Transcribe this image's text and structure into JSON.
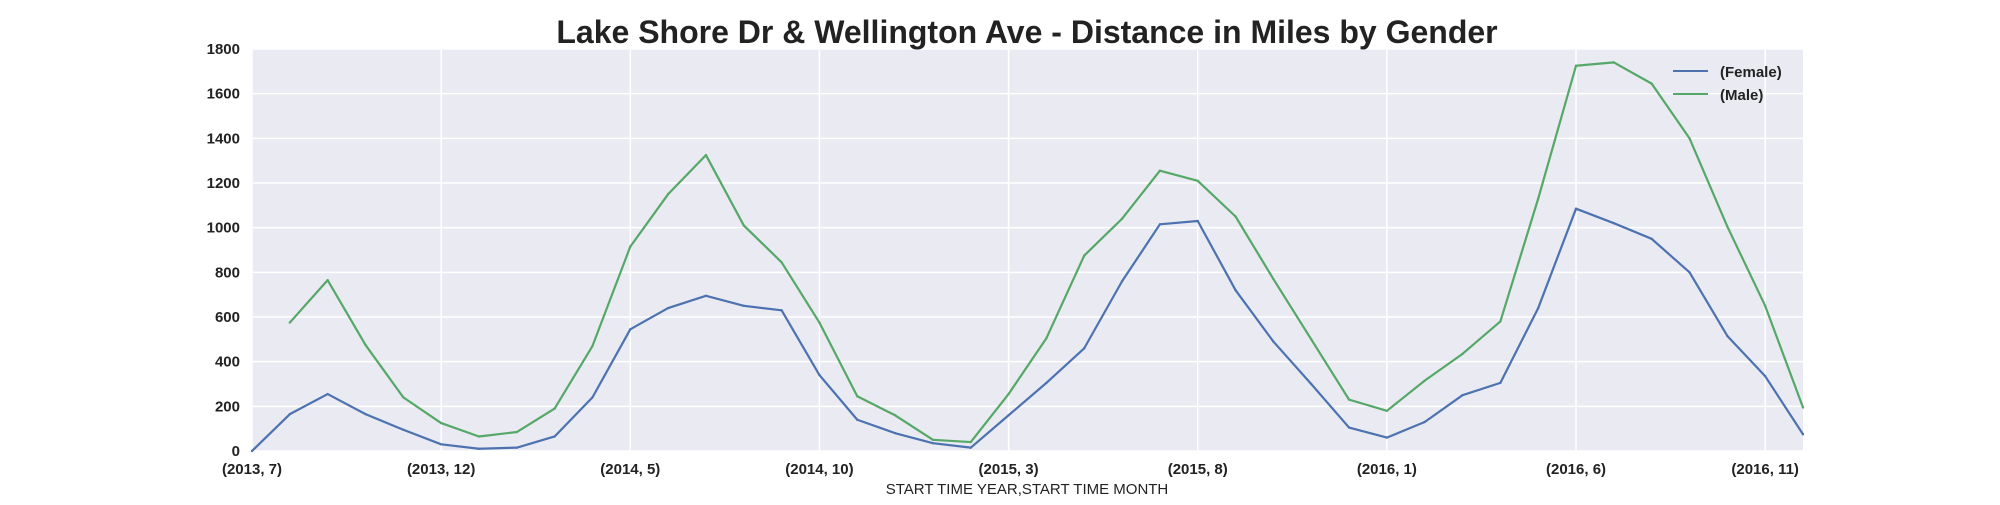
{
  "chart_data": {
    "type": "line",
    "title": "Lake Shore Dr & Wellington Ave - Distance in Miles by Gender",
    "xlabel": "START TIME YEAR,START TIME MONTH",
    "ylabel": "",
    "ylim": [
      0,
      1800
    ],
    "yticks": [
      0,
      200,
      400,
      600,
      800,
      1000,
      1200,
      1400,
      1600,
      1800
    ],
    "xtick_labels": [
      "(2013, 7)",
      "(2013, 12)",
      "(2014, 5)",
      "(2014, 10)",
      "(2015, 3)",
      "(2015, 8)",
      "(2016, 1)",
      "(2016, 6)",
      "(2016, 11)"
    ],
    "grid": true,
    "legend_position": "top-right",
    "categories": [
      "(2013, 7)",
      "(2013, 8)",
      "(2013, 9)",
      "(2013, 10)",
      "(2013, 11)",
      "(2013, 12)",
      "(2014, 1)",
      "(2014, 2)",
      "(2014, 3)",
      "(2014, 4)",
      "(2014, 5)",
      "(2014, 6)",
      "(2014, 7)",
      "(2014, 8)",
      "(2014, 9)",
      "(2014, 10)",
      "(2014, 11)",
      "(2014, 12)",
      "(2015, 1)",
      "(2015, 2)",
      "(2015, 3)",
      "(2015, 4)",
      "(2015, 5)",
      "(2015, 6)",
      "(2015, 7)",
      "(2015, 8)",
      "(2015, 9)",
      "(2015, 10)",
      "(2015, 11)",
      "(2015, 12)",
      "(2016, 1)",
      "(2016, 2)",
      "(2016, 3)",
      "(2016, 4)",
      "(2016, 5)",
      "(2016, 6)",
      "(2016, 7)",
      "(2016, 8)",
      "(2016, 9)",
      "(2016, 10)",
      "(2016, 11)",
      "(2016, 12)"
    ],
    "series": [
      {
        "name": "(Female)",
        "color": "#4c72b0",
        "values": [
          0,
          165,
          255,
          165,
          95,
          30,
          10,
          15,
          65,
          240,
          545,
          640,
          695,
          650,
          630,
          340,
          140,
          80,
          35,
          15,
          160,
          305,
          460,
          760,
          1015,
          1030,
          720,
          490,
          300,
          105,
          60,
          130,
          250,
          305,
          640,
          1085,
          1020,
          950,
          800,
          515,
          335,
          75
        ]
      },
      {
        "name": "(Male)",
        "color": "#55a868",
        "values": [
          null,
          575,
          765,
          475,
          240,
          125,
          65,
          85,
          190,
          470,
          915,
          1150,
          1325,
          1010,
          845,
          575,
          245,
          160,
          50,
          40,
          255,
          505,
          875,
          1040,
          1255,
          1210,
          1050,
          770,
          500,
          230,
          180,
          315,
          435,
          580,
          1130,
          1725,
          1740,
          1645,
          1400,
          1005,
          650,
          195
        ]
      }
    ]
  }
}
